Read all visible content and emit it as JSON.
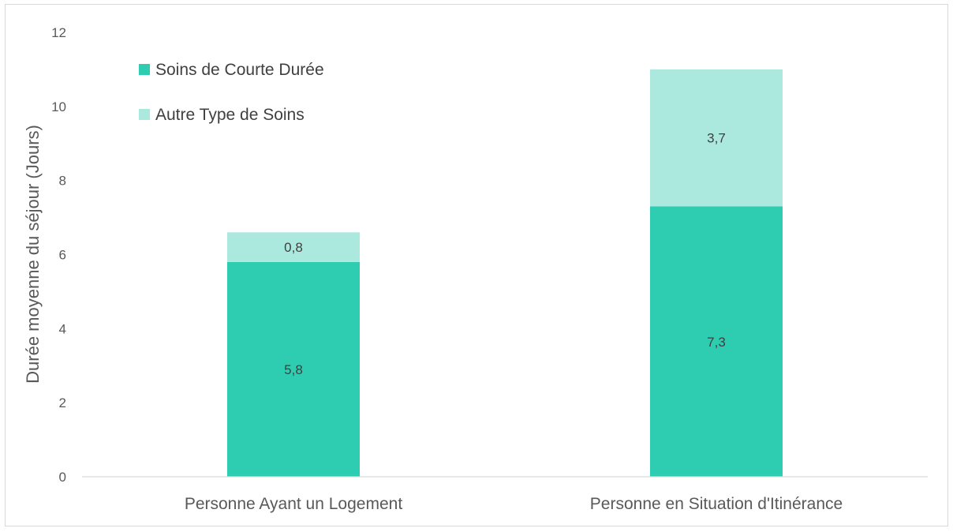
{
  "chart_data": {
    "type": "bar",
    "stacked": true,
    "categories": [
      "Personne Ayant un Logement",
      "Personne en Situation d'Itinérance"
    ],
    "series": [
      {
        "name": "Soins de Courte Durée",
        "values": [
          5.8,
          7.3
        ],
        "labels": [
          "5,8",
          "7,3"
        ],
        "color": "#2ecdb1"
      },
      {
        "name": "Autre Type de Soins",
        "values": [
          0.8,
          3.7
        ],
        "labels": [
          "0,8",
          "3,7"
        ],
        "color": "#abe9de"
      }
    ],
    "ylabel": "Durée moyenne du séjour (Jours)",
    "xlabel": "",
    "ylim": [
      0,
      12
    ],
    "yticks": [
      0,
      2,
      4,
      6,
      8,
      10,
      12
    ],
    "ytick_labels": [
      "0",
      "2",
      "4",
      "6",
      "8",
      "10",
      "12"
    ],
    "grid": false,
    "legend_position": "top-left"
  },
  "colors": {
    "axis_line": "#d9d9d9",
    "text": "#595959",
    "label_text": "#404040"
  }
}
